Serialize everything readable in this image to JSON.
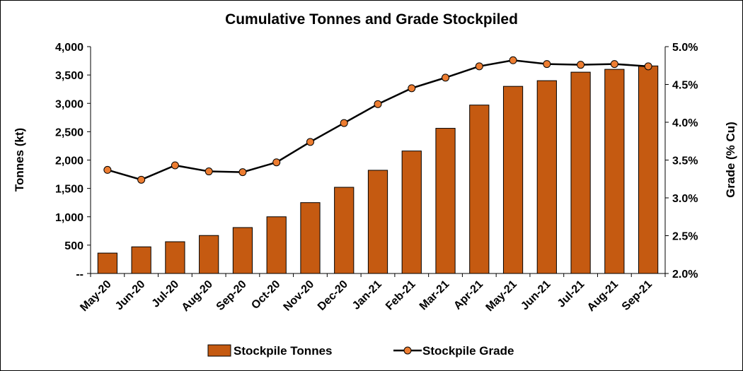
{
  "chart_data": {
    "type": "bar",
    "title": "Cumulative Tonnes and Grade Stockpiled",
    "categories": [
      "May-20",
      "Jun-20",
      "Jul-20",
      "Aug-20",
      "Sep-20",
      "Oct-20",
      "Nov-20",
      "Dec-20",
      "Jan-21",
      "Feb-21",
      "Mar-21",
      "Apr-21",
      "May-21",
      "Jun-21",
      "Jul-21",
      "Aug-21",
      "Sep-21"
    ],
    "ylabel": "Tonnes (kt)",
    "ylim": [
      0,
      4000
    ],
    "yticks": [
      "--",
      "500",
      "1,000",
      "1,500",
      "2,000",
      "2,500",
      "3,000",
      "3,500",
      "4,000"
    ],
    "y2label": "Grade (% Cu)",
    "y2lim": [
      2.0,
      5.0
    ],
    "y2ticks": [
      "2.0%",
      "2.5%",
      "3.0%",
      "3.5%",
      "4.0%",
      "4.5%",
      "5.0%"
    ],
    "series": [
      {
        "name": "Stockpile Tonnes",
        "type": "bar",
        "axis": "left",
        "color": "#C55A11",
        "values": [
          360,
          470,
          560,
          670,
          810,
          1000,
          1250,
          1520,
          1820,
          2160,
          2560,
          2970,
          3300,
          3400,
          3550,
          3600,
          3660
        ]
      },
      {
        "name": "Stockpile Grade",
        "type": "line",
        "axis": "right",
        "color": "#000000",
        "marker_color": "#ED7D31",
        "values": [
          3.37,
          3.24,
          3.43,
          3.35,
          3.34,
          3.47,
          3.74,
          3.99,
          4.24,
          4.45,
          4.59,
          4.74,
          4.82,
          4.77,
          4.76,
          4.77,
          4.74
        ]
      }
    ],
    "grid": false,
    "legend_position": "bottom"
  }
}
